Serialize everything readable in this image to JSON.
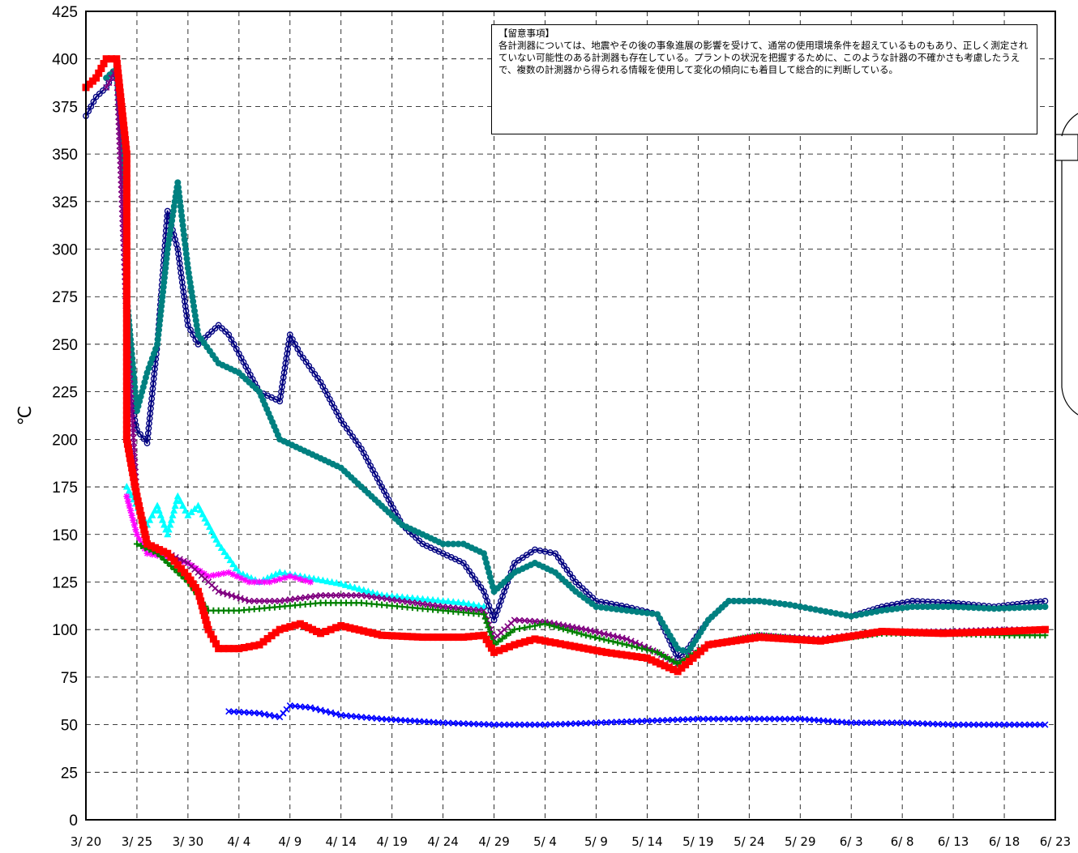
{
  "chart_data": {
    "type": "line",
    "title": "",
    "xlabel": "",
    "ylabel": "℃",
    "ylim": [
      0,
      425
    ],
    "yticks": [
      0,
      25,
      50,
      75,
      100,
      125,
      150,
      175,
      200,
      225,
      250,
      275,
      300,
      325,
      350,
      375,
      400,
      425
    ],
    "xlim": [
      "2011-03-20",
      "2011-06-23"
    ],
    "xtick_labels": [
      "3/ 20",
      "3/ 25",
      "3/ 30",
      "4/ 4",
      "4/ 9",
      "4/ 14",
      "4/ 19",
      "4/ 24",
      "4/ 29",
      "5/ 4",
      "5/ 9",
      "5/ 14",
      "5/ 19",
      "5/ 24",
      "5/ 29",
      "6/ 3",
      "6/ 8",
      "6/ 13",
      "6/ 18",
      "6/ 23"
    ],
    "grid": true,
    "series": [
      {
        "color": "#000080",
        "marker": "open-circle",
        "x": [
          "2011-03-20",
          "2011-03-21",
          "2011-03-22",
          "2011-03-23",
          "2011-03-24",
          "2011-03-24",
          "2011-03-25",
          "2011-03-26",
          "2011-03-27",
          "2011-03-28",
          "2011-03-29",
          "2011-03-30",
          "2011-03-31",
          "2011-04-01",
          "2011-04-02",
          "2011-04-03",
          "2011-04-04",
          "2011-04-06",
          "2011-04-08",
          "2011-04-09",
          "2011-04-10",
          "2011-04-12",
          "2011-04-14",
          "2011-04-16",
          "2011-04-18",
          "2011-04-20",
          "2011-04-22",
          "2011-04-24",
          "2011-04-26",
          "2011-04-28",
          "2011-04-29",
          "2011-05-01",
          "2011-05-03",
          "2011-05-05",
          "2011-05-07",
          "2011-05-09",
          "2011-05-12",
          "2011-05-15",
          "2011-05-17",
          "2011-05-18",
          "2011-05-20",
          "2011-05-22",
          "2011-05-25",
          "2011-05-28",
          "2011-05-31",
          "2011-06-03",
          "2011-06-06",
          "2011-06-09",
          "2011-06-13",
          "2011-06-17",
          "2011-06-22"
        ],
        "y": [
          370,
          380,
          385,
          395,
          330,
          230,
          205,
          198,
          250,
          320,
          300,
          260,
          250,
          255,
          260,
          255,
          245,
          225,
          220,
          255,
          245,
          230,
          210,
          195,
          175,
          155,
          145,
          140,
          135,
          120,
          105,
          135,
          142,
          140,
          125,
          115,
          112,
          108,
          85,
          90,
          105,
          115,
          115,
          113,
          110,
          107,
          112,
          115,
          114,
          112,
          115
        ]
      },
      {
        "color": "#008080",
        "marker": "filled-circle",
        "x": [
          "2011-03-22",
          "2011-03-23",
          "2011-03-24",
          "2011-03-24",
          "2011-03-25",
          "2011-03-26",
          "2011-03-27",
          "2011-03-28",
          "2011-03-29",
          "2011-03-30",
          "2011-03-31",
          "2011-04-02",
          "2011-04-04",
          "2011-04-06",
          "2011-04-08",
          "2011-04-10",
          "2011-04-12",
          "2011-04-14",
          "2011-04-16",
          "2011-04-18",
          "2011-04-20",
          "2011-04-22",
          "2011-04-24",
          "2011-04-26",
          "2011-04-28",
          "2011-04-29",
          "2011-05-01",
          "2011-05-03",
          "2011-05-05",
          "2011-05-07",
          "2011-05-09",
          "2011-05-12",
          "2011-05-15",
          "2011-05-17",
          "2011-05-18",
          "2011-05-20",
          "2011-05-22",
          "2011-05-25",
          "2011-05-28",
          "2011-05-31",
          "2011-06-03",
          "2011-06-06",
          "2011-06-09",
          "2011-06-13",
          "2011-06-17",
          "2011-06-22"
        ],
        "y": [
          390,
          395,
          320,
          275,
          215,
          235,
          250,
          300,
          335,
          290,
          255,
          240,
          235,
          225,
          200,
          195,
          190,
          185,
          175,
          165,
          155,
          150,
          145,
          145,
          140,
          120,
          130,
          135,
          130,
          120,
          112,
          110,
          108,
          90,
          88,
          105,
          115,
          115,
          113,
          110,
          107,
          110,
          112,
          112,
          111,
          112
        ]
      },
      {
        "color": "#00ffff",
        "marker": "triangle",
        "x": [
          "2011-03-24",
          "2011-03-26",
          "2011-03-27",
          "2011-03-28",
          "2011-03-29",
          "2011-03-30",
          "2011-03-31",
          "2011-04-02",
          "2011-04-04",
          "2011-04-06",
          "2011-04-08",
          "2011-04-10",
          "2011-04-14",
          "2011-04-18",
          "2011-04-22",
          "2011-04-26",
          "2011-04-28"
        ],
        "y": [
          175,
          155,
          165,
          150,
          170,
          160,
          165,
          145,
          130,
          125,
          130,
          128,
          124,
          118,
          116,
          114,
          112
        ]
      },
      {
        "color": "#ff00ff",
        "marker": "star",
        "x": [
          "2011-03-24",
          "2011-03-25",
          "2011-03-26",
          "2011-03-28",
          "2011-03-30",
          "2011-04-01",
          "2011-04-03",
          "2011-04-05",
          "2011-04-07",
          "2011-04-09",
          "2011-04-11"
        ],
        "y": [
          170,
          150,
          140,
          138,
          135,
          128,
          130,
          125,
          125,
          128,
          125
        ]
      },
      {
        "color": "#800080",
        "marker": "x",
        "x": [
          "2011-03-22",
          "2011-03-23",
          "2011-03-24",
          "2011-03-25",
          "2011-03-26",
          "2011-03-28",
          "2011-03-30",
          "2011-04-02",
          "2011-04-05",
          "2011-04-08",
          "2011-04-12",
          "2011-04-16",
          "2011-04-20",
          "2011-04-24",
          "2011-04-28",
          "2011-04-29",
          "2011-05-01",
          "2011-05-04",
          "2011-05-08",
          "2011-05-12",
          "2011-05-15",
          "2011-05-17",
          "2011-05-20",
          "2011-05-25",
          "2011-05-31",
          "2011-06-06",
          "2011-06-12",
          "2011-06-18",
          "2011-06-22"
        ],
        "y": [
          385,
          395,
          260,
          170,
          145,
          140,
          135,
          120,
          115,
          115,
          118,
          118,
          115,
          112,
          110,
          95,
          105,
          104,
          100,
          95,
          88,
          82,
          92,
          97,
          95,
          99,
          99,
          100,
          100
        ]
      },
      {
        "color": "#008000",
        "marker": "plus",
        "x": [
          "2011-03-25",
          "2011-03-27",
          "2011-03-30",
          "2011-04-01",
          "2011-04-04",
          "2011-04-08",
          "2011-04-12",
          "2011-04-16",
          "2011-04-20",
          "2011-04-24",
          "2011-04-28",
          "2011-04-29",
          "2011-05-01",
          "2011-05-04",
          "2011-05-08",
          "2011-05-12",
          "2011-05-15",
          "2011-05-17",
          "2011-05-20",
          "2011-05-25",
          "2011-05-31",
          "2011-06-06",
          "2011-06-12",
          "2011-06-18",
          "2011-06-22"
        ],
        "y": [
          145,
          140,
          125,
          110,
          110,
          112,
          114,
          114,
          112,
          110,
          108,
          92,
          100,
          103,
          97,
          92,
          88,
          82,
          92,
          97,
          94,
          98,
          98,
          97,
          97
        ]
      },
      {
        "color": "#ff0000",
        "marker": "square",
        "x": [
          "2011-03-20",
          "2011-03-21",
          "2011-03-22",
          "2011-03-23",
          "2011-03-24",
          "2011-03-24",
          "2011-03-25",
          "2011-03-26",
          "2011-03-28",
          "2011-03-30",
          "2011-03-31",
          "2011-04-01",
          "2011-04-02",
          "2011-04-04",
          "2011-04-06",
          "2011-04-08",
          "2011-04-10",
          "2011-04-12",
          "2011-04-14",
          "2011-04-18",
          "2011-04-22",
          "2011-04-26",
          "2011-04-28",
          "2011-04-29",
          "2011-05-01",
          "2011-05-03",
          "2011-05-06",
          "2011-05-10",
          "2011-05-14",
          "2011-05-17",
          "2011-05-20",
          "2011-05-25",
          "2011-05-31",
          "2011-06-06",
          "2011-06-12",
          "2011-06-18",
          "2011-06-22"
        ],
        "y": [
          385,
          390,
          400,
          400,
          350,
          200,
          170,
          145,
          140,
          128,
          120,
          100,
          90,
          90,
          92,
          100,
          103,
          98,
          102,
          97,
          96,
          96,
          97,
          88,
          92,
          95,
          92,
          88,
          85,
          78,
          92,
          96,
          94,
          99,
          98,
          99,
          100
        ]
      },
      {
        "color": "#0000ff",
        "marker": "x",
        "x": [
          "2011-04-03",
          "2011-04-06",
          "2011-04-08",
          "2011-04-09",
          "2011-04-11",
          "2011-04-14",
          "2011-04-18",
          "2011-04-24",
          "2011-04-29",
          "2011-05-04",
          "2011-05-09",
          "2011-05-14",
          "2011-05-19",
          "2011-05-24",
          "2011-05-29",
          "2011-06-03",
          "2011-06-08",
          "2011-06-13",
          "2011-06-18",
          "2011-06-22"
        ],
        "y": [
          57,
          56,
          54,
          60,
          59,
          55,
          53,
          51,
          50,
          50,
          51,
          52,
          53,
          53,
          53,
          51,
          51,
          50,
          50,
          50
        ]
      }
    ]
  },
  "note": {
    "title": "【留意事項】",
    "body": "各計測器については、地震やその後の事象進展の影響を受けて、通常の使用環境条件を超えているものもあり、正しく測定されていない可能性のある計測器も存在している。プラントの状況を把握するために、このような計器の不確かさも考慮したうえで、複数の計測器から得られる情報を使用して変化の傾向にも着目して総合的に判断している。"
  }
}
